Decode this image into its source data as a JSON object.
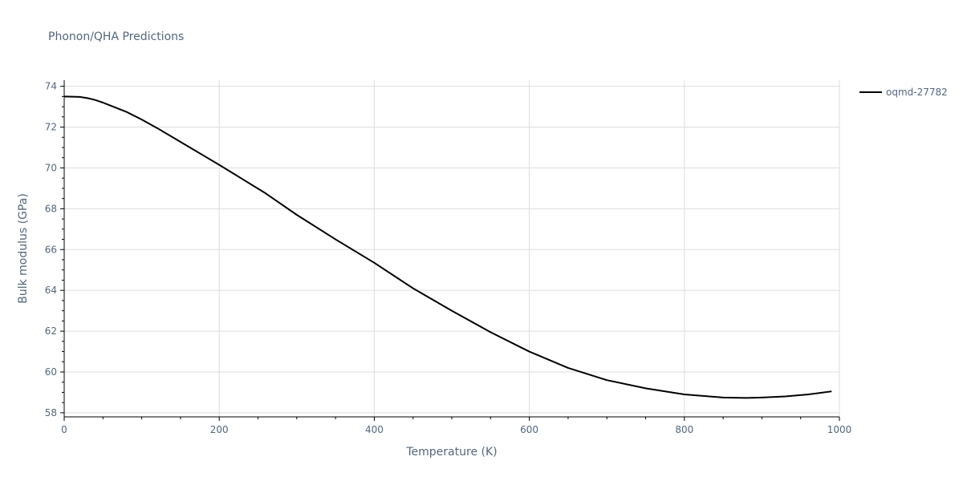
{
  "chart_data": {
    "type": "line",
    "title": "Phonon/QHA Predictions",
    "xlabel": "Temperature (K)",
    "ylabel": "Bulk modulus (GPa)",
    "xlim": [
      0,
      1000
    ],
    "ylim": [
      57.8,
      74.3
    ],
    "grid": true,
    "legend_position": "top-right",
    "x_ticks": [
      0,
      200,
      400,
      600,
      800,
      1000
    ],
    "y_ticks": [
      58,
      60,
      62,
      64,
      66,
      68,
      70,
      72,
      74
    ],
    "series": [
      {
        "name": "oqmd-27782",
        "color": "#000000",
        "x": [
          0,
          20,
          30,
          40,
          50,
          60,
          80,
          100,
          120,
          140,
          160,
          180,
          200,
          230,
          260,
          300,
          350,
          400,
          450,
          500,
          550,
          600,
          650,
          700,
          750,
          800,
          850,
          880,
          900,
          930,
          960,
          990
        ],
        "y": [
          73.5,
          73.48,
          73.42,
          73.33,
          73.2,
          73.05,
          72.75,
          72.37,
          71.95,
          71.5,
          71.05,
          70.6,
          70.15,
          69.45,
          68.75,
          67.7,
          66.5,
          65.35,
          64.1,
          63.0,
          61.95,
          61.0,
          60.2,
          59.6,
          59.2,
          58.9,
          58.75,
          58.73,
          58.75,
          58.8,
          58.9,
          59.05
        ]
      }
    ]
  }
}
